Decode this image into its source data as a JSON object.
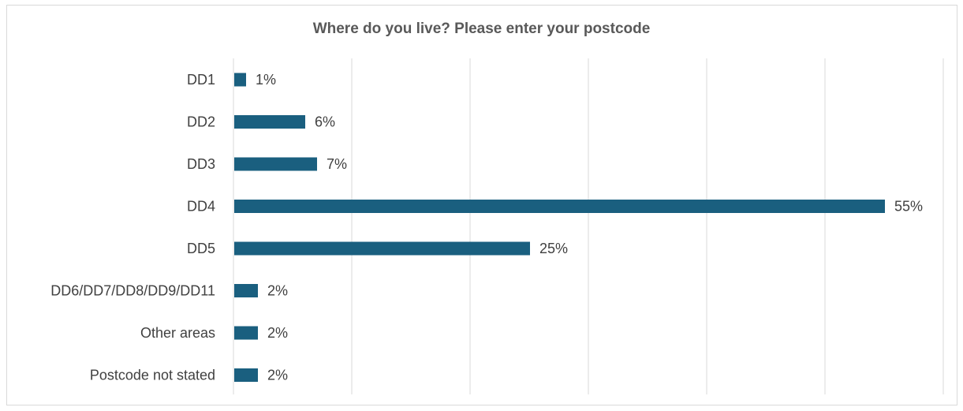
{
  "chart_data": {
    "type": "bar",
    "orientation": "horizontal",
    "title": "Where do you live?  Please enter your postcode",
    "categories": [
      "DD1",
      "DD2",
      "DD3",
      "DD4",
      "DD5",
      "DD6/DD7/DD8/DD9/DD11",
      "Other areas",
      "Postcode not stated"
    ],
    "values": [
      1,
      6,
      7,
      55,
      25,
      2,
      2,
      2
    ],
    "value_labels": [
      "1%",
      "6%",
      "7%",
      "55%",
      "25%",
      "2%",
      "2%",
      "2%"
    ],
    "unit": "%",
    "xlim": [
      0,
      60
    ],
    "grid": "vertical",
    "legend": "none",
    "bar_color": "#1a5f7f",
    "grid_color": "#d9d9d9"
  }
}
